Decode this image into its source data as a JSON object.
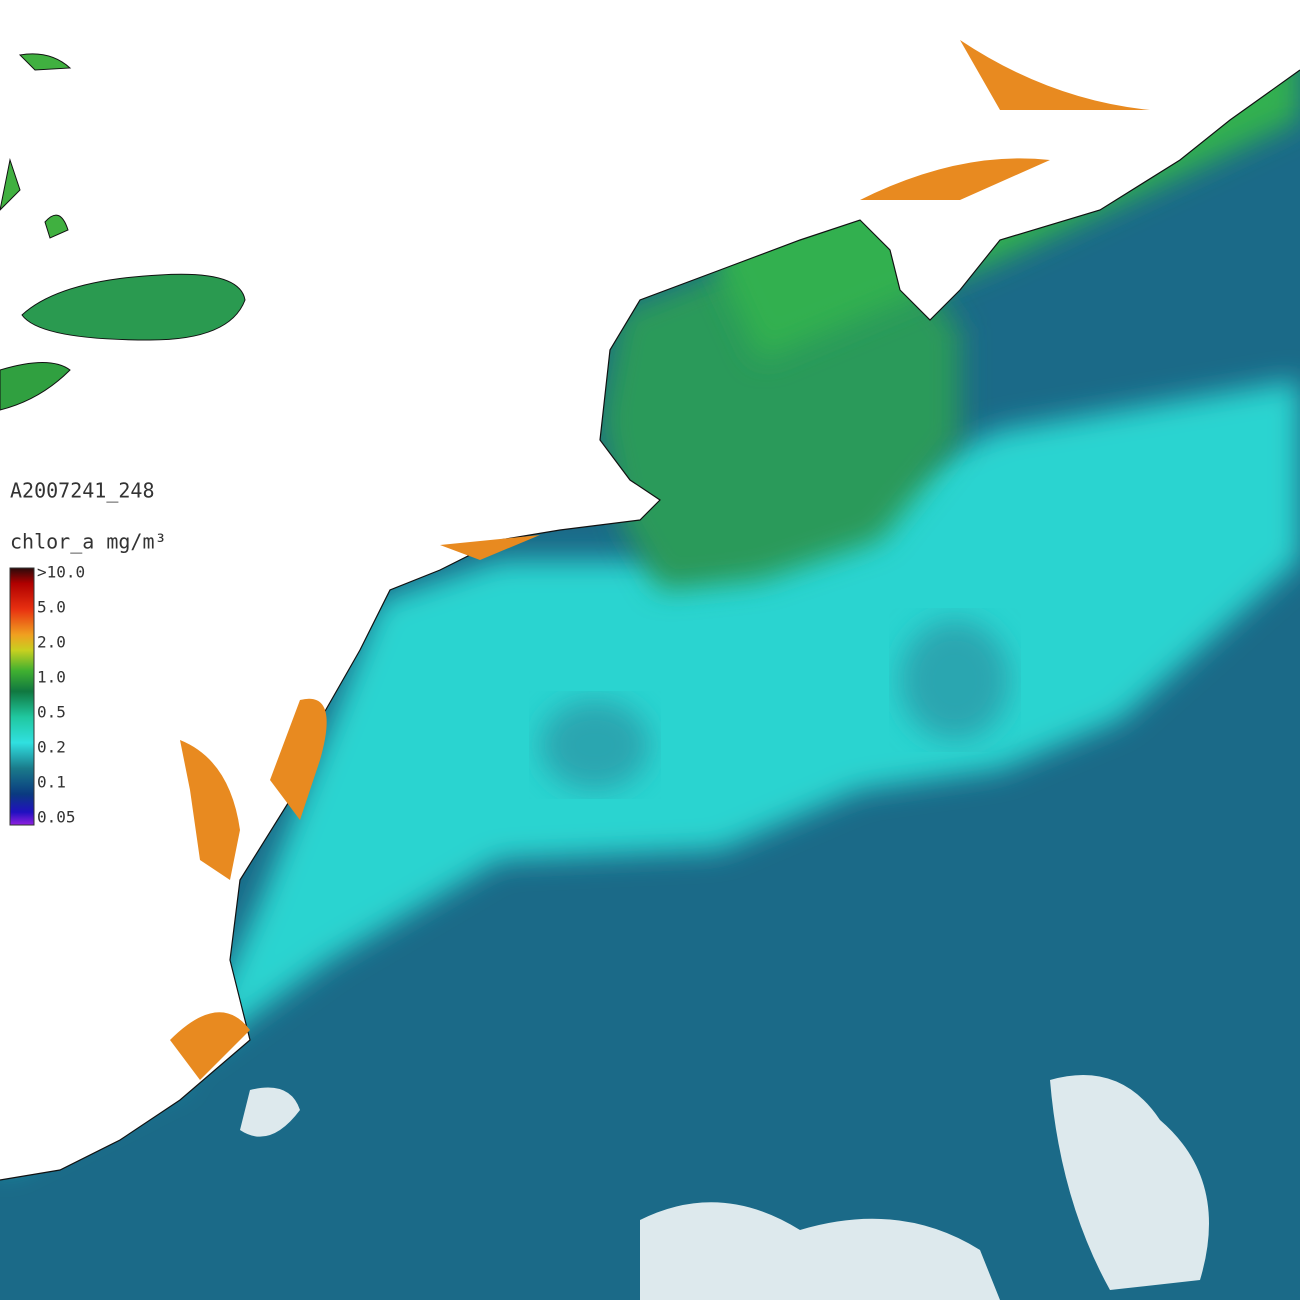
{
  "title": "A2007241_248",
  "legend": {
    "label": "chlor_a mg/m³",
    "ticks": [
      ">10.0",
      "5.0",
      "2.0",
      "1.0",
      "0.5",
      "0.2",
      "0.1",
      "0.05"
    ]
  }
}
